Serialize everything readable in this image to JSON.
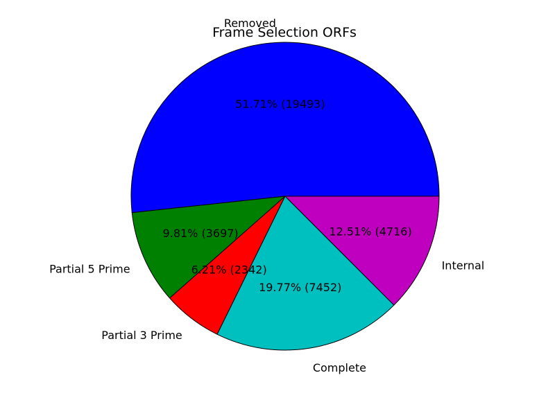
{
  "chart_data": {
    "type": "pie",
    "title": "Frame Selection ORFs",
    "slices": [
      {
        "label": "Removed",
        "value": 19493,
        "pct_label": "51.71%  (19493)",
        "color": "#0000ff"
      },
      {
        "label": "Partial 5 Prime",
        "value": 3697,
        "pct_label": "9.81%  (3697)",
        "color": "#008000"
      },
      {
        "label": "Partial 3 Prime",
        "value": 2342,
        "pct_label": "6.21%  (2342)",
        "color": "#ff0000"
      },
      {
        "label": "Complete",
        "value": 7452,
        "pct_label": "19.77%  (7452)",
        "color": "#00bfbf"
      },
      {
        "label": "Internal",
        "value": 4716,
        "pct_label": "12.51%  (4716)",
        "color": "#bf00bf"
      }
    ],
    "start_angle_deg": 0,
    "direction": "counterclockwise",
    "edge_color": "#000000"
  }
}
